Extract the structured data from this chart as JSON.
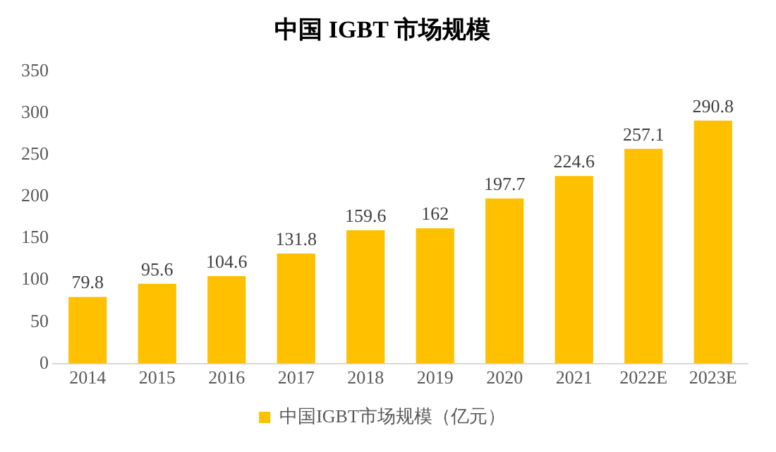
{
  "chart_data": {
    "type": "bar",
    "title": "中国 IGBT 市场规模",
    "categories": [
      "2014",
      "2015",
      "2016",
      "2017",
      "2018",
      "2019",
      "2020",
      "2021",
      "2022E",
      "2023E"
    ],
    "series": [
      {
        "name": "中国IGBT市场规模（亿元）",
        "color": "#ffc000",
        "values": [
          79.8,
          95.6,
          104.6,
          131.8,
          159.6,
          162,
          197.7,
          224.6,
          257.1,
          290.8
        ]
      }
    ],
    "ylim": [
      0,
      350
    ],
    "yticks": [
      0,
      50,
      100,
      150,
      200,
      250,
      300,
      350
    ],
    "grid": false,
    "legend": "bottom",
    "data_labels": true
  }
}
